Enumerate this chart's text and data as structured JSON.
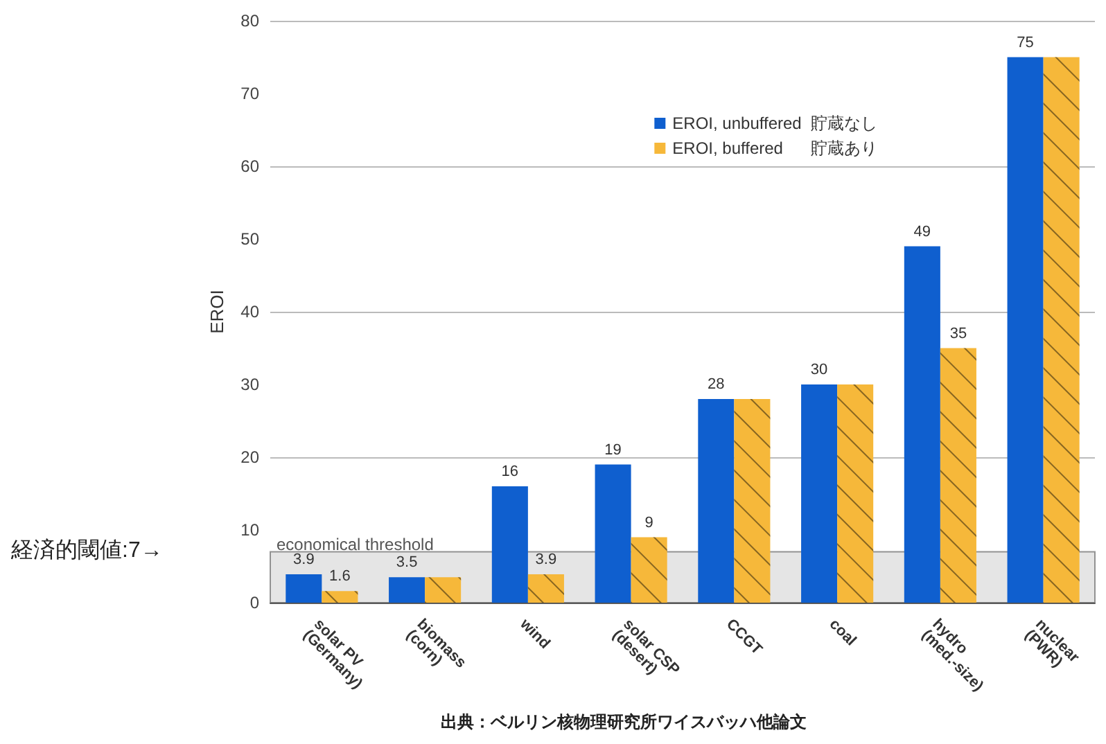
{
  "chart_data": {
    "type": "bar",
    "ylabel": "EROI",
    "categories": [
      "solar PV\n(Germany)",
      "biomass\n(corn)",
      "wind",
      "solar CSP\n(desert)",
      "CCGT",
      "coal",
      "hydro\n(med.-size)",
      "nuclear\n(PWR)"
    ],
    "series": [
      {
        "name": "EROI, unbuffered  貯蔵なし",
        "color": "#0f5fcf",
        "values": [
          3.9,
          3.5,
          16,
          19,
          28,
          30,
          49,
          75
        ],
        "value_labels": [
          "3.9",
          "3.5",
          "16",
          "19",
          "28",
          "30",
          "49",
          "75"
        ]
      },
      {
        "name": "EROI, buffered      貯蔵あり",
        "color": "#f6b83a",
        "values": [
          1.6,
          3.5,
          3.9,
          9,
          28,
          30,
          35,
          75
        ],
        "value_labels": [
          "1.6",
          null,
          "3.9",
          "9",
          null,
          null,
          "35",
          null
        ]
      }
    ],
    "ylim": [
      0,
      80
    ],
    "yticks": [
      0,
      10,
      20,
      30,
      40,
      50,
      60,
      70,
      80
    ],
    "grid": "y",
    "legend": "top right",
    "bands": [
      {
        "axis": "y",
        "from": 0,
        "to": 7,
        "label": "economical threshold",
        "color": "#cccccc"
      }
    ],
    "annotations": [
      "経済的閾値:7→",
      "出典：ベルリン核物理研究所ワイスバッハ他論文"
    ]
  }
}
